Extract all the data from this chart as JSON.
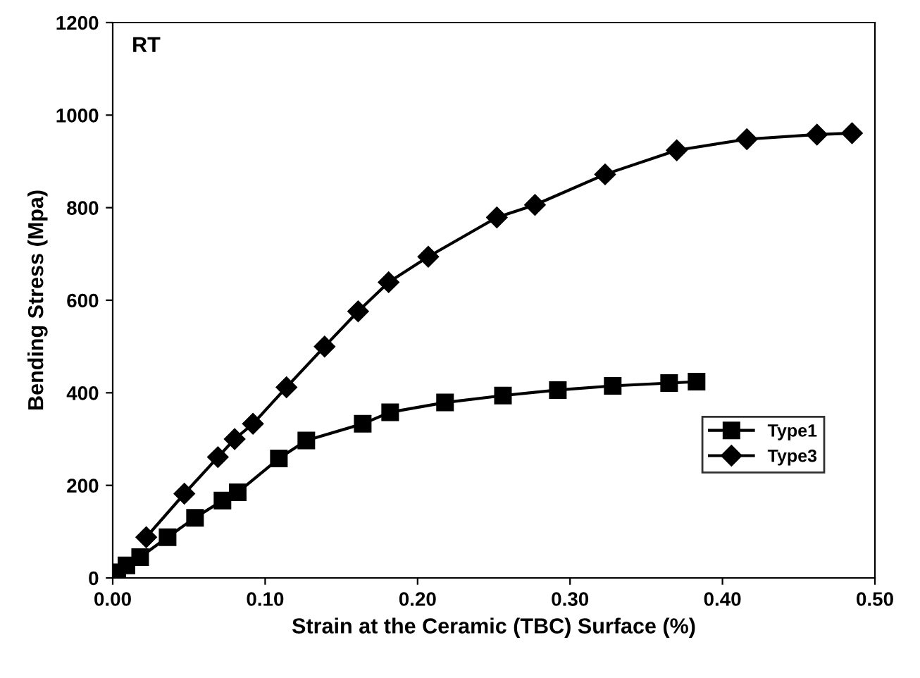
{
  "chart_data": {
    "type": "line",
    "xlabel": "Strain at the Ceramic (TBC) Surface (%)",
    "ylabel": "Bending Stress (Mpa)",
    "annotations": [
      "RT"
    ],
    "series": [
      {
        "name": "Type1",
        "color": "#000000",
        "marker": "square",
        "x": [
          0.003,
          0.009,
          0.018,
          0.036,
          0.054,
          0.072,
          0.082,
          0.109,
          0.127,
          0.164,
          0.182,
          0.218,
          0.256,
          0.292,
          0.328,
          0.365,
          0.383
        ],
        "values": [
          12,
          27,
          45,
          88,
          130,
          167,
          185,
          258,
          297,
          333,
          358,
          379,
          394,
          406,
          415,
          421,
          424
        ]
      },
      {
        "name": "Type3",
        "color": "#000000",
        "marker": "diamond",
        "x": [
          0.022,
          0.047,
          0.069,
          0.08,
          0.092,
          0.114,
          0.139,
          0.161,
          0.181,
          0.207,
          0.252,
          0.277,
          0.323,
          0.37,
          0.416,
          0.462,
          0.485
        ],
        "values": [
          88,
          182,
          261,
          300,
          333,
          412,
          500,
          576,
          639,
          694,
          779,
          806,
          872,
          924,
          948,
          958,
          961
        ]
      }
    ],
    "xlim": [
      0,
      0.5
    ],
    "ylim": [
      0,
      1200
    ],
    "xticks": [
      {
        "value": 0,
        "label": "0.00"
      },
      {
        "value": 0.1,
        "label": "0.10"
      },
      {
        "value": 0.2,
        "label": "0.20"
      },
      {
        "value": 0.3,
        "label": "0.30"
      },
      {
        "value": 0.4,
        "label": "0.40"
      },
      {
        "value": 0.5,
        "label": "0.50"
      }
    ],
    "yticks": [
      0,
      200,
      400,
      600,
      800,
      1000,
      1200
    ],
    "grid": false,
    "legend": "right",
    "line_style": "solid"
  }
}
